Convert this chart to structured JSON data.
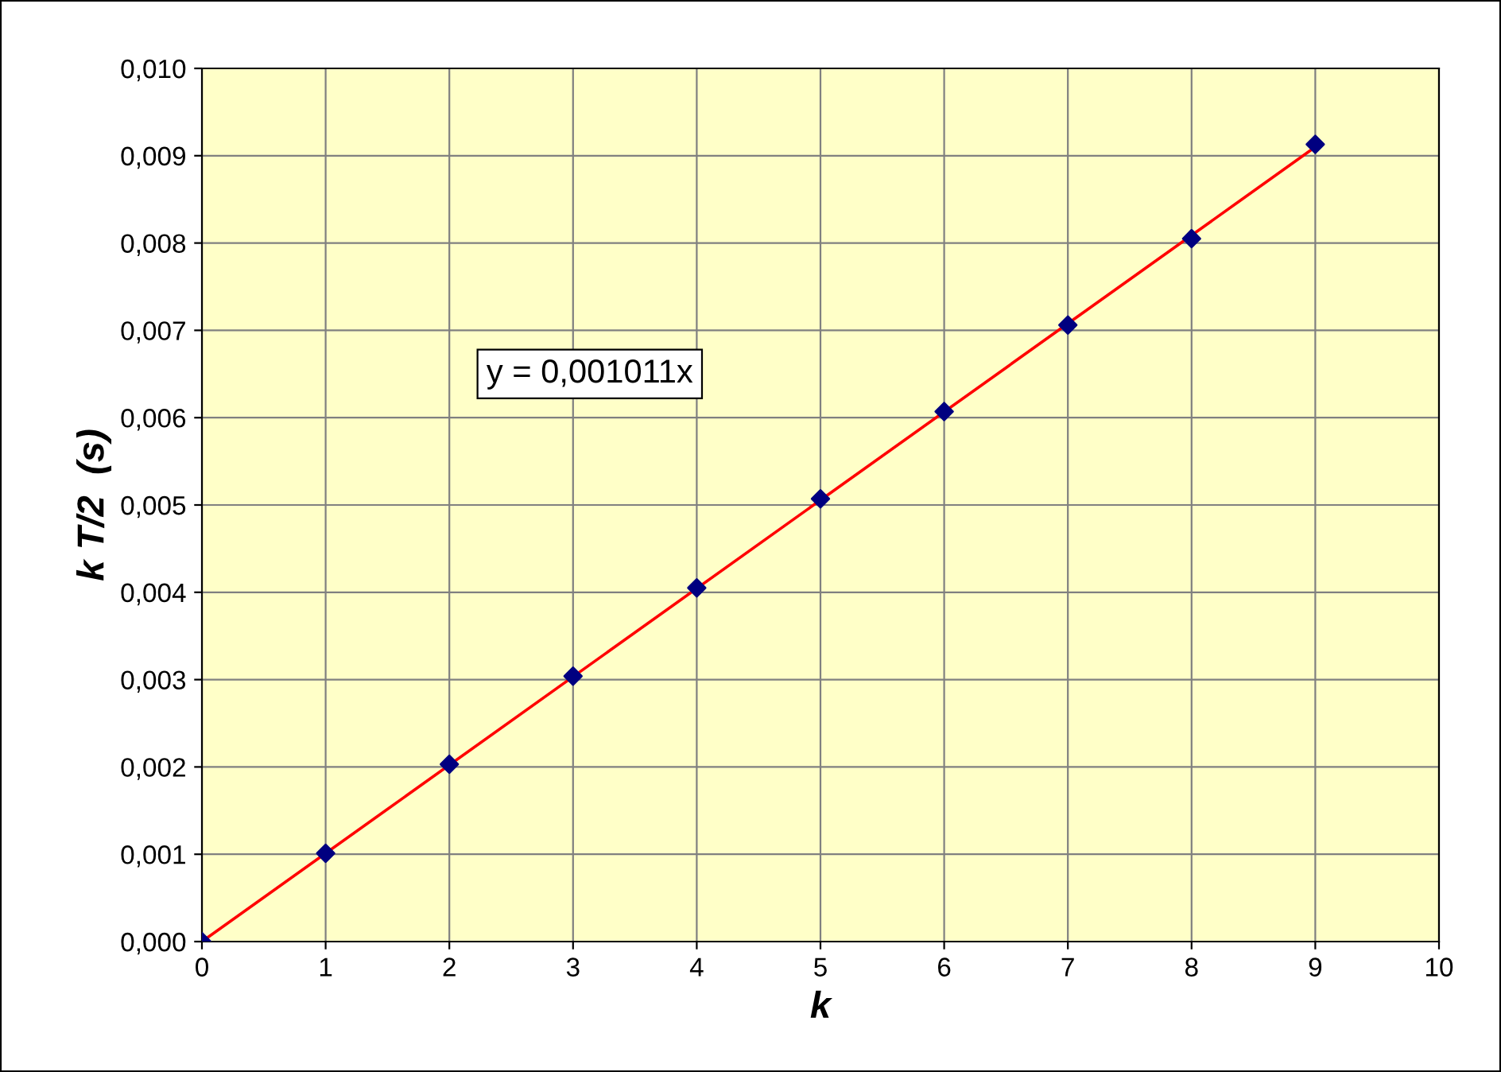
{
  "chart_data": {
    "type": "scatter",
    "xlabel": "k",
    "ylabel": "k T/2  (s)",
    "x": [
      0,
      1,
      2,
      3,
      4,
      5,
      6,
      7,
      8,
      9
    ],
    "series": [
      {
        "color": "#000080",
        "marker": "diamond",
        "values": [
          0,
          0.00101,
          0.00203,
          0.00304,
          0.00405,
          0.00507,
          0.00607,
          0.00706,
          0.00805,
          0.00913
        ]
      },
      {
        "type": "line",
        "color": "#ff0000",
        "marker": "none",
        "x": [
          0,
          9
        ],
        "values": [
          0,
          0.0091
        ]
      }
    ],
    "xlim": [
      0,
      10
    ],
    "xticks": [
      0,
      1,
      2,
      3,
      4,
      5,
      6,
      7,
      8,
      9,
      10
    ],
    "ylim": [
      0,
      0.01
    ],
    "yticks": [
      {
        "value": 0,
        "label": "0,000"
      },
      {
        "value": 0.001,
        "label": "0,001"
      },
      {
        "value": 0.002,
        "label": "0,002"
      },
      {
        "value": 0.003,
        "label": "0,003"
      },
      {
        "value": 0.004,
        "label": "0,004"
      },
      {
        "value": 0.005,
        "label": "0,005"
      },
      {
        "value": 0.006,
        "label": "0,006"
      },
      {
        "value": 0.007,
        "label": "0,007"
      },
      {
        "value": 0.008,
        "label": "0,008"
      },
      {
        "value": 0.009,
        "label": "0,009"
      },
      {
        "value": 0.01,
        "label": "0,010"
      }
    ],
    "annotations": [
      "y = 0,001011x"
    ],
    "grid": true,
    "legend": false
  }
}
